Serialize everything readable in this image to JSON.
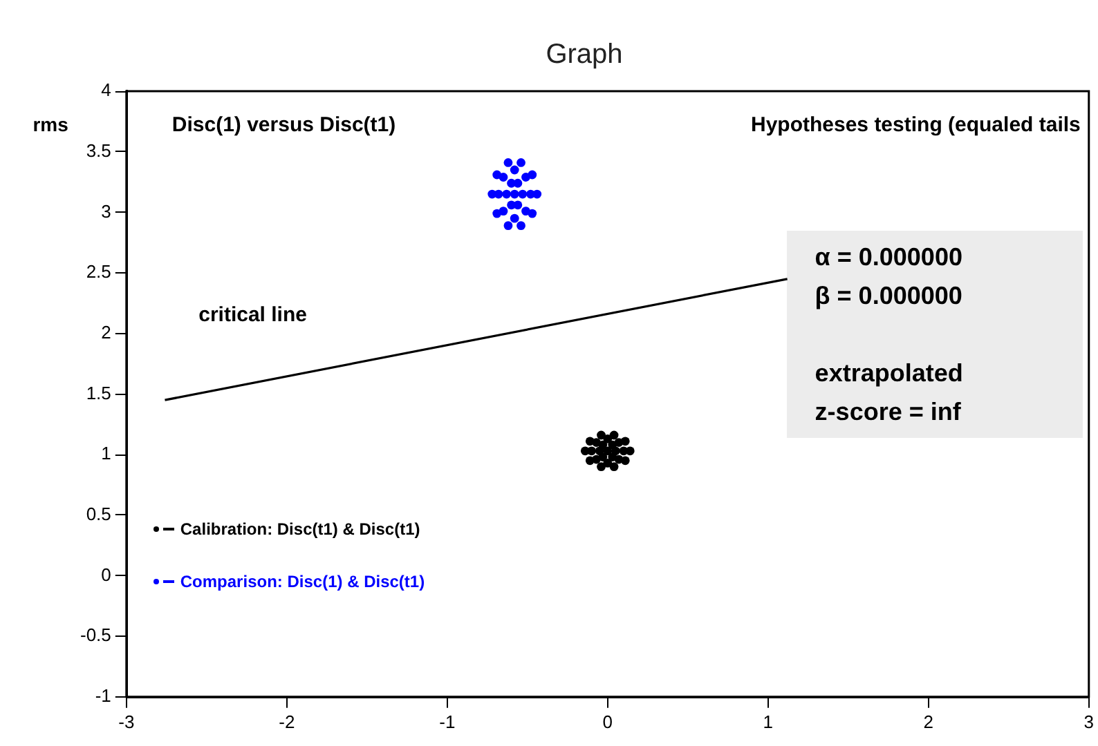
{
  "chart_data": {
    "type": "scatter",
    "title": "Graph",
    "ylabel": "rms",
    "xlim": [
      -3,
      3
    ],
    "ylim": [
      -1,
      4
    ],
    "xticks": [
      -3,
      -2,
      -1,
      0,
      1,
      2,
      3
    ],
    "yticks": [
      -1,
      -0.5,
      0,
      0.5,
      1,
      1.5,
      2,
      2.5,
      3,
      3.5,
      4
    ],
    "grid": false,
    "legend": "bottom left",
    "marker": "circle",
    "annotations": [
      "Disc(1) versus Disc(t1)",
      "Hypotheses testing (equaled tails",
      "critical line",
      "α = 0.000000",
      "β = 0.000000",
      "extrapolated",
      "z-score = inf"
    ],
    "series": [
      {
        "name": "Calibration: Disc(t1) & Disc(t1)",
        "color": "#000000",
        "x": [
          0,
          0.05,
          0.03,
          -0.03,
          -0.05,
          -0.03,
          0.03,
          0.1,
          0.07,
          0,
          -0.07,
          -0.1,
          -0.07,
          0,
          0.07,
          0.14,
          0.11,
          0.04,
          -0.04,
          -0.11,
          -0.14,
          -0.11,
          -0.04,
          0.04,
          0.11
        ],
        "values": [
          1.03,
          1.03,
          1.08,
          1.08,
          1.03,
          0.98,
          0.98,
          1.03,
          1.1,
          1.13,
          1.1,
          1.03,
          0.96,
          0.93,
          0.96,
          1.03,
          1.11,
          1.16,
          1.16,
          1.11,
          1.03,
          0.95,
          0.9,
          0.9,
          0.95
        ]
      },
      {
        "name": "Comparison: Disc(1) & Disc(t1)",
        "color": "#0000ff",
        "x": [
          -0.58,
          -0.53,
          -0.56,
          -0.6,
          -0.63,
          -0.6,
          -0.56,
          -0.48,
          -0.51,
          -0.58,
          -0.65,
          -0.68,
          -0.65,
          -0.58,
          -0.51,
          -0.44,
          -0.47,
          -0.54,
          -0.62,
          -0.69,
          -0.72,
          -0.69,
          -0.62,
          -0.54,
          -0.47
        ],
        "values": [
          3.15,
          3.15,
          3.24,
          3.24,
          3.15,
          3.06,
          3.06,
          3.15,
          3.29,
          3.35,
          3.29,
          3.15,
          3.01,
          2.95,
          3.01,
          3.15,
          3.31,
          3.41,
          3.41,
          3.31,
          3.15,
          2.99,
          2.89,
          2.89,
          2.99
        ]
      },
      {
        "type": "line",
        "color": "#000000",
        "marker": "none",
        "line_style": "solid",
        "x": [
          -2.76,
          1.12
        ],
        "values": [
          1.45,
          2.45
        ]
      }
    ]
  }
}
